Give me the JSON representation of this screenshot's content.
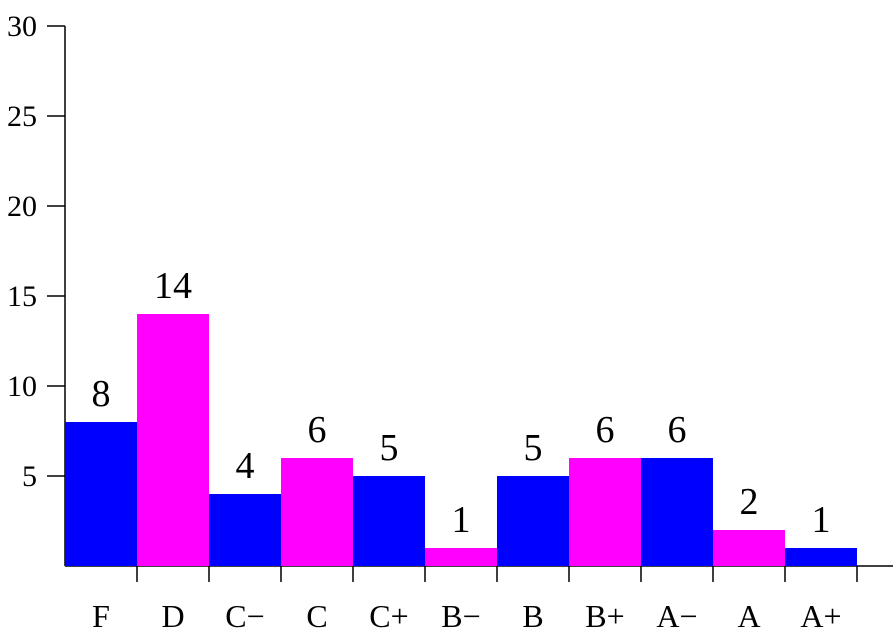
{
  "chart_data": {
    "type": "bar",
    "categories": [
      "F",
      "D",
      "C−",
      "C",
      "C+",
      "B−",
      "B",
      "B+",
      "A−",
      "A",
      "A+"
    ],
    "values": [
      8,
      14,
      4,
      6,
      5,
      1,
      5,
      6,
      6,
      2,
      1
    ],
    "colors": [
      "#0000ff",
      "#ff00ff",
      "#0000ff",
      "#ff00ff",
      "#0000ff",
      "#ff00ff",
      "#0000ff",
      "#ff00ff",
      "#0000ff",
      "#ff00ff",
      "#0000ff"
    ],
    "ylim": [
      0,
      30
    ],
    "yticks": [
      5,
      10,
      15,
      20,
      25,
      30
    ],
    "grid": false
  }
}
